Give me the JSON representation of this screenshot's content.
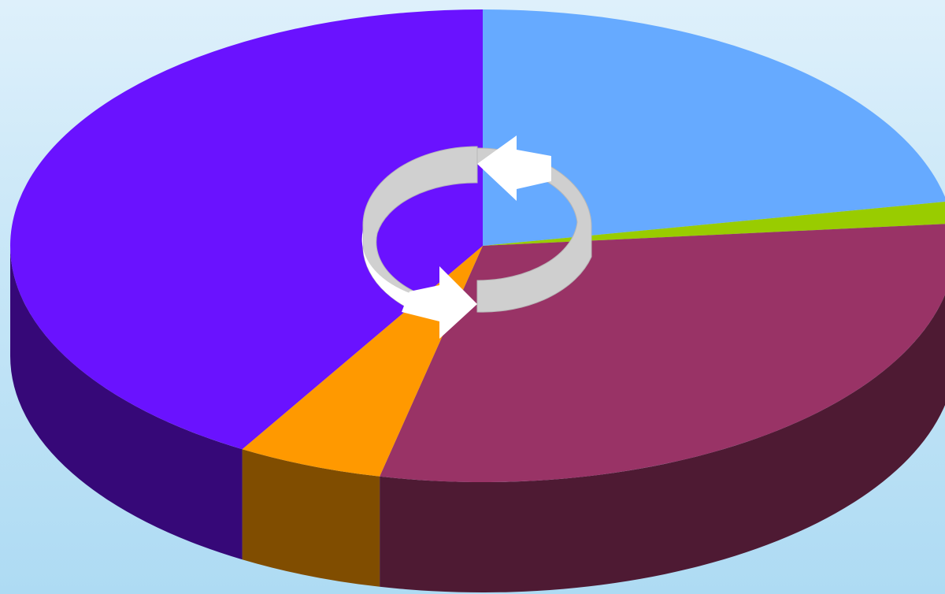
{
  "chart_data": {
    "type": "pie",
    "style": "3d",
    "values": [
      22,
      1.5,
      30,
      5,
      41.5
    ],
    "colors": [
      "#66aaff",
      "#99cc00",
      "#993366",
      "#ff9900",
      "#6a12ff"
    ],
    "side_colors": [
      "#3a6699",
      "#5a7a00",
      "#4e1a33",
      "#804d00",
      "#360878"
    ],
    "start_angle_deg": -90,
    "direction": "clockwise"
  },
  "icons": {
    "center": "refresh-cycle-icon"
  }
}
